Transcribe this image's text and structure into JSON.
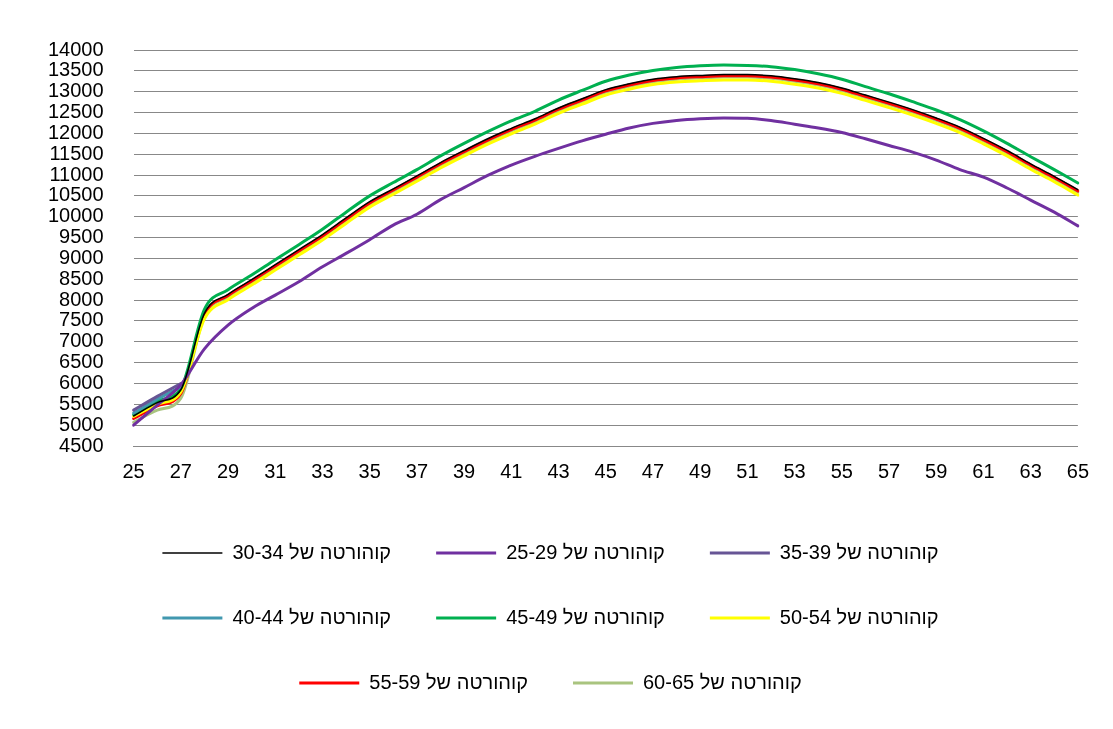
{
  "chart_data": {
    "type": "line",
    "categories": [
      "25",
      null,
      "27",
      null,
      "29",
      null,
      "31",
      null,
      "33",
      null,
      "35",
      null,
      "37",
      null,
      "39",
      null,
      "41",
      null,
      "43",
      null,
      "45",
      null,
      "47",
      null,
      "49",
      null,
      "51",
      null,
      "53",
      null,
      "55",
      null,
      "57",
      null,
      "59",
      null,
      "61",
      null,
      "63",
      null,
      "65"
    ],
    "series": [
      {
        "name": "קוהורטה של 25-29",
        "color": "#7030a0",
        "values": [
          5000,
          5480,
          5970,
          6830,
          7400,
          7800,
          8120,
          8440,
          8800,
          9120,
          9450,
          9800,
          10060,
          10410,
          10700,
          10990,
          11240,
          11450,
          11640,
          11820,
          11980,
          12130,
          12240,
          12310,
          12350,
          12370,
          12360,
          12310,
          12220,
          12130,
          12020,
          11870,
          11710,
          11550,
          11360,
          11130,
          10950,
          10690,
          10400,
          10110,
          9780
        ]
      },
      {
        "name": "קוהורטה של 30-34",
        "color": "#000000",
        "values": [
          5220,
          5540,
          5850,
          7680,
          8140,
          8490,
          8850,
          9210,
          9570,
          9970,
          10360,
          10670,
          10980,
          11300,
          11590,
          11870,
          12120,
          12350,
          12610,
          12830,
          13050,
          13190,
          13300,
          13360,
          13390,
          13410,
          13410,
          13380,
          13310,
          13220,
          13090,
          12920,
          12750,
          12570,
          12370,
          12150,
          11880,
          11590,
          11270,
          10970,
          10650
        ]
      },
      {
        "name": "קוהורטה של 35-39",
        "color": "#675595",
        "values": [
          5360,
          5690,
          6000,
          null,
          null,
          null,
          null,
          null,
          null,
          null,
          null,
          null,
          null,
          null,
          null,
          null,
          null,
          null,
          null,
          null,
          null,
          null,
          null,
          null,
          null,
          null,
          null,
          null,
          null,
          null,
          null,
          null,
          null,
          null,
          null,
          null,
          null,
          null,
          null,
          null,
          null
        ]
      },
      {
        "name": "קוהורטה של 40-44",
        "color": "#4198af",
        "values": [
          5290,
          5620,
          5920,
          null,
          null,
          null,
          null,
          null,
          null,
          null,
          null,
          null,
          null,
          null,
          null,
          null,
          null,
          null,
          null,
          null,
          null,
          null,
          null,
          null,
          null,
          null,
          null,
          null,
          null,
          null,
          null,
          null,
          null,
          null,
          null,
          null,
          null,
          null,
          null,
          null,
          null
        ]
      },
      {
        "name": "קוהורטה של 45-49",
        "color": "#00b050",
        "values": [
          5250,
          5580,
          5880,
          7780,
          8250,
          8600,
          8970,
          9330,
          9700,
          10110,
          10500,
          10820,
          11130,
          11460,
          11760,
          12040,
          12300,
          12530,
          12800,
          13030,
          13250,
          13400,
          13510,
          13580,
          13620,
          13640,
          13630,
          13600,
          13530,
          13430,
          13300,
          13120,
          12950,
          12760,
          12560,
          12330,
          12060,
          11760,
          11440,
          11130,
          10810
        ]
      },
      {
        "name": "קוהורטה של 50-54",
        "color": "#ffff00",
        "values": [
          5210,
          5500,
          5800,
          7550,
          8010,
          8360,
          8720,
          9080,
          9440,
          9840,
          10230,
          10540,
          10850,
          11170,
          11460,
          11740,
          11990,
          12220,
          12480,
          12700,
          12920,
          13060,
          13170,
          13230,
          13260,
          13280,
          13280,
          13250,
          13180,
          13090,
          12960,
          12790,
          12620,
          12440,
          12240,
          12020,
          11750,
          11460,
          11140,
          10840,
          10520
        ]
      },
      {
        "name": "קוהורטה של 55-59",
        "color": "#ff0000",
        "values": [
          5160,
          5460,
          5760,
          7650,
          8110,
          8460,
          8820,
          9180,
          9540,
          9940,
          10330,
          10640,
          10950,
          11270,
          11560,
          11840,
          12090,
          12320,
          12580,
          12800,
          13020,
          13160,
          13270,
          13330,
          13360,
          13380,
          13380,
          13350,
          13280,
          13190,
          13060,
          12890,
          12720,
          12540,
          12340,
          12120,
          11850,
          11560,
          11240,
          10940,
          10620
        ]
      },
      {
        "name": "קוהורטה של 60-65",
        "color": "#a9c47f",
        "values": [
          5070,
          5360,
          5650,
          7620,
          8080,
          8430,
          8790,
          9150,
          9510,
          9910,
          10300,
          10610,
          10920,
          11240,
          11530,
          11810,
          12060,
          12290,
          12550,
          12770,
          12990,
          13130,
          13240,
          13300,
          13330,
          13350,
          13350,
          13320,
          13250,
          13160,
          13030,
          12860,
          12690,
          12510,
          12310,
          12090,
          11820,
          11530,
          11210,
          10910,
          10590
        ]
      }
    ],
    "ylim": [
      4500,
      14000
    ],
    "yticks": [
      4500,
      5000,
      5500,
      6000,
      6500,
      7000,
      7500,
      8000,
      8500,
      9000,
      9500,
      10000,
      10500,
      11000,
      11500,
      12000,
      12500,
      13000,
      13500,
      14000
    ],
    "grid": "y",
    "legend": "bottom",
    "marker": "none",
    "line_style": "solid"
  }
}
